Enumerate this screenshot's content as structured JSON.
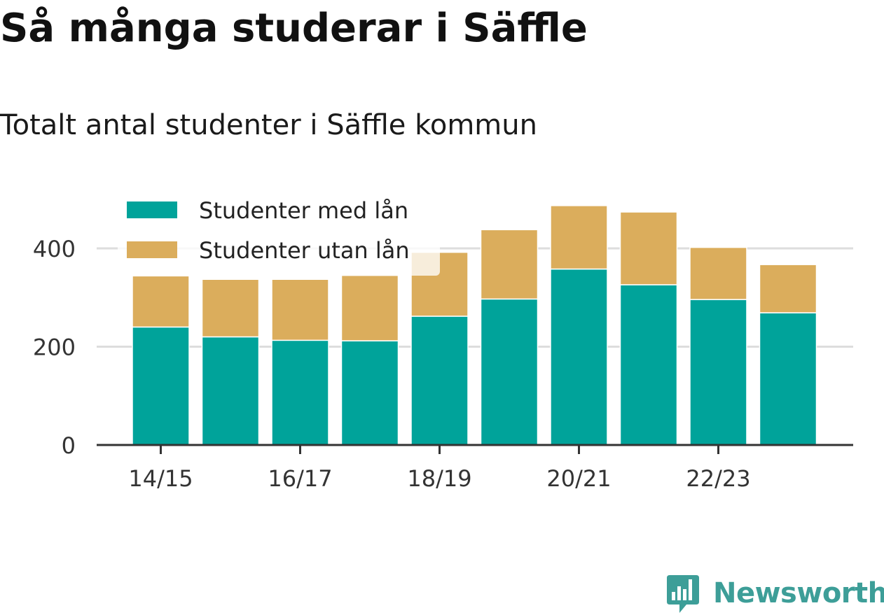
{
  "title": "Så många studerar i Säffle",
  "subtitle": "Totalt antal studenter i Säffle kommun",
  "brand": {
    "name": "Newsworthy",
    "color": "#3d9e98",
    "icon": "newsworthy-logo-icon"
  },
  "colors": {
    "with_loan": "#00a39a",
    "without_loan": "#dbad5c",
    "grid": "#dddddd",
    "axis": "#333333"
  },
  "chart_data": {
    "type": "bar",
    "stacked": true,
    "categories": [
      "14/15",
      "15/16",
      "16/17",
      "17/18",
      "18/19",
      "19/20",
      "20/21",
      "21/22",
      "22/23",
      "23/24"
    ],
    "x_tick_labels": [
      "14/15",
      "16/17",
      "18/19",
      "20/21",
      "22/23"
    ],
    "series": [
      {
        "name": "Studenter med lån",
        "values": [
          240,
          220,
          213,
          212,
          262,
          297,
          358,
          326,
          296,
          269
        ]
      },
      {
        "name": "Studenter utan lån",
        "values": [
          104,
          117,
          124,
          133,
          130,
          141,
          129,
          148,
          106,
          98
        ]
      }
    ],
    "ylim": [
      0,
      500
    ],
    "y_ticks": [
      0,
      200,
      400
    ],
    "xlabel": "",
    "ylabel": "",
    "grid": true,
    "legend": "top-left"
  }
}
